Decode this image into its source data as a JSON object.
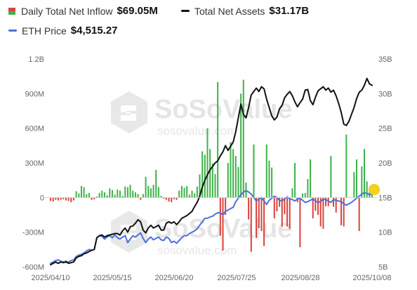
{
  "legend": {
    "inflow_label": "Daily Total Net Inflow",
    "inflow_value": "$69.05M",
    "assets_label": "Total Net Assets",
    "assets_value": "$31.17B",
    "price_label": "ETH Price",
    "price_value": "$4,515.27"
  },
  "watermark": {
    "brand": "SoSoValue",
    "url": "sosovalue.com"
  },
  "colors": {
    "inflow_positive": "#3fb24a",
    "inflow_negative": "#d9443c",
    "assets_line": "#111111",
    "price_line": "#4a72d8",
    "highlight_dot": "#f5cf1d",
    "axis_text": "#666666"
  },
  "chart_data": {
    "type": "bar+line",
    "grid": false,
    "x_tick_labels": [
      "2025/04/10",
      "2025/05/15",
      "2025/06/20",
      "2025/07/25",
      "2025/08/28",
      "2025/10/08"
    ],
    "left_axis": {
      "ticks": [
        "1.2B",
        "900M",
        "600M",
        "300M",
        "0",
        "-300M",
        "-600M"
      ],
      "range_millions": [
        -600,
        1200
      ]
    },
    "right_axis": {
      "ticks": [
        "35B",
        "30B",
        "25B",
        "20B",
        "15B",
        "10B",
        "5B"
      ],
      "range_billions": [
        5,
        35
      ]
    },
    "series": [
      {
        "name": "Daily Total Net Inflow",
        "kind": "bar",
        "axis": "left",
        "unit": "millions USD",
        "values": [
          -30,
          -35,
          -20,
          -25,
          -20,
          -15,
          -25,
          -30,
          -40,
          -25,
          55,
          35,
          100,
          90,
          30,
          40,
          -20,
          -15,
          10,
          40,
          60,
          45,
          20,
          80,
          65,
          25,
          70,
          60,
          15,
          95,
          90,
          110,
          60,
          45,
          30,
          -20,
          30,
          180,
          100,
          80,
          110,
          240,
          90,
          15,
          -10,
          -20,
          -35,
          -40,
          -15,
          -20,
          60,
          100,
          85,
          100,
          25,
          60,
          35,
          95,
          200,
          400,
          370,
          600,
          420,
          295,
          205,
          1000,
          -330,
          -460,
          -150,
          300,
          480,
          420,
          360,
          265,
          900,
          1020,
          130,
          -190,
          -470,
          460,
          -350,
          -265,
          -290,
          -420,
          460,
          320,
          260,
          -180,
          -120,
          -80,
          -250,
          -145,
          -250,
          -270,
          80,
          300,
          -40,
          -430,
          35,
          40,
          160,
          330,
          -180,
          -115,
          -150,
          -250,
          -270,
          -75,
          -75,
          360,
          -80,
          -130,
          0,
          -240,
          -250,
          545,
          0,
          0,
          220,
          330,
          -290,
          270,
          420,
          140,
          90,
          70
        ]
      },
      {
        "name": "Total Net Assets",
        "kind": "line",
        "axis": "right",
        "unit": "billions USD",
        "values": [
          5.3,
          5.5,
          5.7,
          5.5,
          5.7,
          5.6,
          5.8,
          5.5,
          5.6,
          5.7,
          6.3,
          6.5,
          6.6,
          6.9,
          7.0,
          7.2,
          7.4,
          7.5,
          9.2,
          9.5,
          9.6,
          9.3,
          9.5,
          9.6,
          9.7,
          9.8,
          9.8,
          9.6,
          10.2,
          10.6,
          10.0,
          10.8,
          10.9,
          11.3,
          11.8,
          11.5,
          10.3,
          9.9,
          10.6,
          11.0,
          10.6,
          10.8,
          11.0,
          10.3,
          10.3,
          11.3,
          11.5,
          11.3,
          11.5,
          11.1,
          11.5,
          12.0,
          12.2,
          12.4,
          12.7,
          13.0,
          13.7,
          14.3,
          15.2,
          16.5,
          17.5,
          18.3,
          19.0,
          19.5,
          20.0,
          20.3,
          21.0,
          21.6,
          22.5,
          21.8,
          22.4,
          23.0,
          24.5,
          26.5,
          28.5,
          27.0,
          26.5,
          28.0,
          29.8,
          30.3,
          30.8,
          30.3,
          31.0,
          30.7,
          29.2,
          28.0,
          26.8,
          26.2,
          26.6,
          27.8,
          28.3,
          29.4,
          29.9,
          30.3,
          29.7,
          28.8,
          28.1,
          28.7,
          29.2,
          30.5,
          30.6,
          29.0,
          28.4,
          29.5,
          30.4,
          30.7,
          31.0,
          30.5,
          30.8,
          30.2,
          30.5,
          29.7,
          28.6,
          27.3,
          25.6,
          25.4,
          26.0,
          27.0,
          28.0,
          29.3,
          30.2,
          30.5,
          31.2,
          32.2,
          31.4,
          31.2
        ]
      },
      {
        "name": "ETH Price",
        "kind": "line",
        "axis": "right",
        "unit": "USD (rescaled to right axis)",
        "values": [
          5.5,
          5.7,
          5.9,
          6.0,
          5.8,
          5.7,
          5.6,
          5.7,
          5.9,
          6.0,
          6.5,
          6.7,
          6.8,
          7.0,
          7.3,
          7.5,
          7.4,
          7.5,
          9.2,
          9.5,
          9.4,
          9.0,
          9.3,
          9.5,
          9.2,
          9.6,
          9.2,
          9.0,
          9.3,
          9.5,
          8.5,
          9.0,
          9.5,
          9.3,
          9.6,
          9.9,
          9.1,
          8.5,
          9.0,
          9.3,
          8.9,
          9.1,
          9.3,
          8.9,
          8.8,
          9.3,
          9.1,
          8.5,
          8.7,
          8.4,
          8.8,
          9.2,
          9.5,
          9.5,
          9.8,
          10.0,
          10.2,
          10.5,
          11.0,
          11.5,
          12.0,
          12.0,
          12.2,
          12.3,
          12.6,
          12.8,
          12.8,
          12.5,
          13.0,
          13.2,
          13.4,
          13.6,
          14.4,
          14.9,
          15.4,
          15.8,
          16.0,
          15.8,
          15.5,
          15.0,
          14.5,
          14.8,
          15.0,
          14.5,
          14.0,
          14.6,
          14.9,
          15.2,
          15.0,
          14.6,
          14.5,
          14.8,
          15.1,
          14.8,
          14.7,
          14.5,
          14.8,
          14.9,
          14.6,
          14.3,
          14.4,
          14.6,
          14.8,
          14.5,
          14.3,
          14.4,
          14.8,
          14.7,
          14.5,
          14.3,
          14.7,
          14.6,
          14.5,
          14.4,
          14.1,
          13.9,
          14.1,
          14.3,
          14.6,
          14.9,
          15.2,
          15.5,
          15.7,
          15.6,
          15.4,
          15.5
        ]
      }
    ],
    "highlight_marker": {
      "series": "Daily Total Net Inflow",
      "index": 125
    }
  }
}
